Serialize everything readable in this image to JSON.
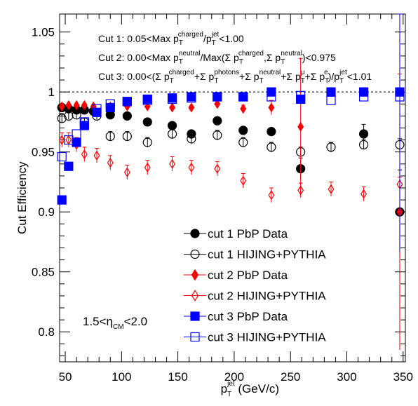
{
  "chart_data": {
    "type": "scatter",
    "xlabel": {
      "base": "p",
      "sub": "T",
      "sup": "jet",
      "unit": " (GeV/c)"
    },
    "ylabel": "Cut Efficiency",
    "xlim": [
      45,
      352
    ],
    "ylim": [
      0.775,
      1.065
    ],
    "xticks": [
      50,
      100,
      150,
      200,
      250,
      300,
      350
    ],
    "yticks": [
      0.8,
      0.85,
      0.9,
      0.95,
      1,
      1.05
    ],
    "ytick_labels": [
      "0.8",
      "0.85",
      "0.9",
      "0.95",
      "1",
      "1.05"
    ],
    "reference_line": 1.0,
    "cuts": [
      "Cut 1: 0.05<Max p_T^charged/p_T^jet<1.00",
      "Cut 2: 0.00<Max p_T^neutral/Max(Σ p_T^charged,Σ p_T^neutral)<0.975",
      "Cut 3: 0.00<(Σ p_T^charged+Σ p_T^photons+Σ p_T^neutral+Σ p_T^μ+Σ p_T^e)/p_T^jet<1.01"
    ],
    "annotation": "1.5<η_CM<2.0",
    "series": [
      {
        "name": "cut 1 PbP Data",
        "color": "#000000",
        "marker": "circle",
        "filled": true,
        "points": [
          {
            "x": 47,
            "y": 0.987
          },
          {
            "x": 53,
            "y": 0.986
          },
          {
            "x": 60,
            "y": 0.985
          },
          {
            "x": 67,
            "y": 0.985
          },
          {
            "x": 75,
            "y": 0.984
          },
          {
            "x": 90,
            "y": 0.981
          },
          {
            "x": 105,
            "y": 0.98
          },
          {
            "x": 123,
            "y": 0.975
          },
          {
            "x": 145,
            "y": 0.972
          },
          {
            "x": 162,
            "y": 0.965
          },
          {
            "x": 185,
            "y": 0.976
          },
          {
            "x": 208,
            "y": 0.968
          },
          {
            "x": 233,
            "y": 0.967
          },
          {
            "x": 259,
            "y": 0.936,
            "err": 0.009
          },
          {
            "x": 315,
            "y": 0.965,
            "err": 0.008
          },
          {
            "x": 347,
            "y": 0.9,
            "err": 0.035
          }
        ]
      },
      {
        "name": "cut 1 HIJING+PYTHIA",
        "color": "#000000",
        "marker": "circle",
        "filled": false,
        "points": [
          {
            "x": 47,
            "y": 0.978,
            "err": 0.004
          },
          {
            "x": 53,
            "y": 0.98,
            "err": 0.003
          },
          {
            "x": 60,
            "y": 0.981,
            "err": 0.003
          },
          {
            "x": 67,
            "y": 0.975,
            "err": 0.003
          },
          {
            "x": 78,
            "y": 0.98,
            "err": 0.003
          },
          {
            "x": 90,
            "y": 0.963,
            "err": 0.004
          },
          {
            "x": 105,
            "y": 0.963,
            "err": 0.004
          },
          {
            "x": 123,
            "y": 0.958,
            "err": 0.004
          },
          {
            "x": 145,
            "y": 0.965,
            "err": 0.004
          },
          {
            "x": 162,
            "y": 0.961,
            "err": 0.004
          },
          {
            "x": 185,
            "y": 0.964,
            "err": 0.004
          },
          {
            "x": 208,
            "y": 0.958,
            "err": 0.004
          },
          {
            "x": 233,
            "y": 0.954,
            "err": 0.004
          },
          {
            "x": 259,
            "y": 0.95,
            "err": 0.004
          },
          {
            "x": 286,
            "y": 0.954,
            "err": 0.004
          },
          {
            "x": 315,
            "y": 0.956,
            "err": 0.004
          },
          {
            "x": 347,
            "y": 0.956,
            "err": 0.005
          }
        ]
      },
      {
        "name": "cut 2 PbP Data",
        "color": "#ff0000",
        "marker": "diamond",
        "filled": true,
        "points": [
          {
            "x": 47,
            "y": 0.988
          },
          {
            "x": 53,
            "y": 0.989
          },
          {
            "x": 60,
            "y": 0.989
          },
          {
            "x": 67,
            "y": 0.989
          },
          {
            "x": 75,
            "y": 0.988
          },
          {
            "x": 90,
            "y": 0.988
          },
          {
            "x": 105,
            "y": 0.988
          },
          {
            "x": 123,
            "y": 0.988
          },
          {
            "x": 145,
            "y": 0.987
          },
          {
            "x": 162,
            "y": 0.987
          },
          {
            "x": 185,
            "y": 0.99
          },
          {
            "x": 208,
            "y": 0.986,
            "err": 0.003
          },
          {
            "x": 233,
            "y": 0.987,
            "err": 0.006
          },
          {
            "x": 259,
            "y": 0.971,
            "err": 0.057
          },
          {
            "x": 286,
            "y": 1.0,
            "err": 0.002
          },
          {
            "x": 315,
            "y": 1.0,
            "err": 0.002
          },
          {
            "x": 347,
            "y": 0.9,
            "err": 0.115
          }
        ]
      },
      {
        "name": "cut 2 HIJING+PYTHIA",
        "color": "#ff0000",
        "marker": "diamond",
        "filled": false,
        "points": [
          {
            "x": 47,
            "y": 0.96,
            "err": 0.006
          },
          {
            "x": 53,
            "y": 0.96,
            "err": 0.006
          },
          {
            "x": 60,
            "y": 0.956,
            "err": 0.006
          },
          {
            "x": 67,
            "y": 0.948,
            "err": 0.006
          },
          {
            "x": 78,
            "y": 0.947,
            "err": 0.006
          },
          {
            "x": 90,
            "y": 0.941,
            "err": 0.006
          },
          {
            "x": 105,
            "y": 0.933,
            "err": 0.006
          },
          {
            "x": 123,
            "y": 0.937,
            "err": 0.006
          },
          {
            "x": 145,
            "y": 0.94,
            "err": 0.006
          },
          {
            "x": 162,
            "y": 0.937,
            "err": 0.006
          },
          {
            "x": 185,
            "y": 0.936,
            "err": 0.006
          },
          {
            "x": 208,
            "y": 0.926,
            "err": 0.006
          },
          {
            "x": 233,
            "y": 0.914,
            "err": 0.006
          },
          {
            "x": 259,
            "y": 0.918,
            "err": 0.006
          },
          {
            "x": 286,
            "y": 0.919,
            "err": 0.006
          },
          {
            "x": 315,
            "y": 0.915,
            "err": 0.006
          },
          {
            "x": 347,
            "y": 0.923,
            "err": 0.006
          }
        ]
      },
      {
        "name": "cut 3 PbP Data",
        "color": "#0000ff",
        "marker": "square",
        "filled": true,
        "points": [
          {
            "x": 47,
            "y": 0.91
          },
          {
            "x": 53,
            "y": 0.938
          },
          {
            "x": 60,
            "y": 0.958
          },
          {
            "x": 67,
            "y": 0.972
          },
          {
            "x": 78,
            "y": 0.983
          },
          {
            "x": 90,
            "y": 0.987
          },
          {
            "x": 105,
            "y": 0.992
          },
          {
            "x": 123,
            "y": 0.994
          },
          {
            "x": 145,
            "y": 0.995
          },
          {
            "x": 162,
            "y": 0.996
          },
          {
            "x": 185,
            "y": 0.996
          },
          {
            "x": 208,
            "y": 0.996
          },
          {
            "x": 233,
            "y": 1.0
          },
          {
            "x": 259,
            "y": 0.994
          },
          {
            "x": 286,
            "y": 1.0
          },
          {
            "x": 315,
            "y": 1.0
          },
          {
            "x": 347,
            "y": 1.0,
            "err": 0.133
          }
        ]
      },
      {
        "name": "cut 3 HIJING+PYTHIA",
        "color": "#0000ff",
        "marker": "square",
        "filled": false,
        "points": [
          {
            "x": 47,
            "y": 0.946
          },
          {
            "x": 53,
            "y": 0.96
          },
          {
            "x": 60,
            "y": 0.965
          },
          {
            "x": 67,
            "y": 0.975
          },
          {
            "x": 78,
            "y": 0.986
          },
          {
            "x": 90,
            "y": 0.99
          },
          {
            "x": 105,
            "y": 0.992
          },
          {
            "x": 123,
            "y": 0.993
          },
          {
            "x": 145,
            "y": 0.994
          },
          {
            "x": 162,
            "y": 0.995
          },
          {
            "x": 185,
            "y": 0.996
          },
          {
            "x": 208,
            "y": 0.996
          },
          {
            "x": 233,
            "y": 0.996
          },
          {
            "x": 259,
            "y": 0.997
          },
          {
            "x": 286,
            "y": 0.993
          },
          {
            "x": 315,
            "y": 0.996
          },
          {
            "x": 347,
            "y": 0.996
          }
        ]
      }
    ]
  }
}
